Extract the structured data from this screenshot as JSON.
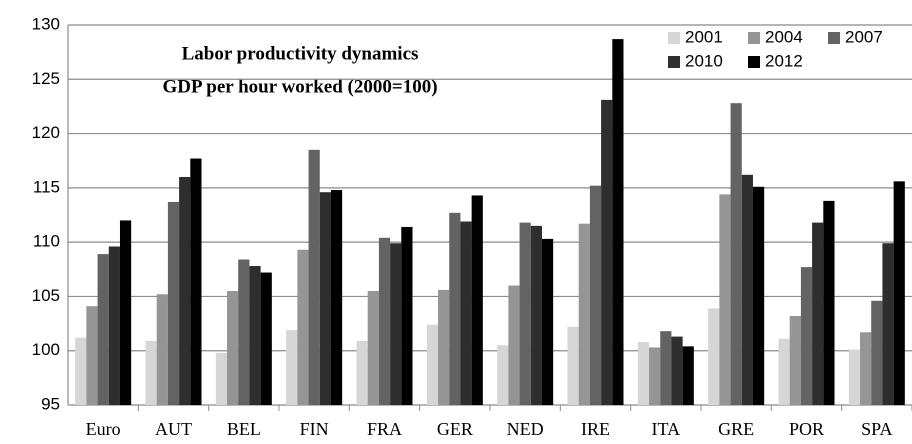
{
  "chart_data": {
    "type": "bar",
    "title": "Labor productivity dynamics",
    "subtitle": "GDP per hour worked (2000=100)",
    "categories": [
      "Euro",
      "AUT",
      "BEL",
      "FIN",
      "FRA",
      "GER",
      "NED",
      "IRE",
      "ITA",
      "GRE",
      "POR",
      "SPA"
    ],
    "series": [
      {
        "name": "2001",
        "color": "#d6d6d6",
        "values": [
          101.2,
          100.9,
          99.8,
          101.9,
          100.9,
          102.4,
          100.5,
          102.2,
          100.8,
          103.9,
          101.1,
          100.1
        ]
      },
      {
        "name": "2004",
        "color": "#959595",
        "values": [
          104.1,
          105.2,
          105.5,
          109.3,
          105.5,
          105.6,
          106.0,
          111.7,
          100.3,
          114.4,
          103.2,
          101.7
        ]
      },
      {
        "name": "2007",
        "color": "#636363",
        "values": [
          108.9,
          113.7,
          108.4,
          118.5,
          110.4,
          112.7,
          111.8,
          115.2,
          101.8,
          122.8,
          107.7,
          104.6
        ]
      },
      {
        "name": "2010",
        "color": "#2e2e2e",
        "values": [
          109.6,
          116.0,
          107.8,
          114.6,
          109.9,
          111.9,
          111.5,
          123.1,
          101.3,
          116.2,
          111.8,
          109.9
        ]
      },
      {
        "name": "2012",
        "color": "#000000",
        "values": [
          112.0,
          117.7,
          107.2,
          114.8,
          111.4,
          114.3,
          110.3,
          128.7,
          100.4,
          115.1,
          113.8,
          115.6
        ]
      }
    ],
    "ylim": [
      95,
      130
    ],
    "yticks": [
      95,
      100,
      105,
      110,
      115,
      120,
      125,
      130
    ],
    "grid": true,
    "legend": "top-right"
  }
}
